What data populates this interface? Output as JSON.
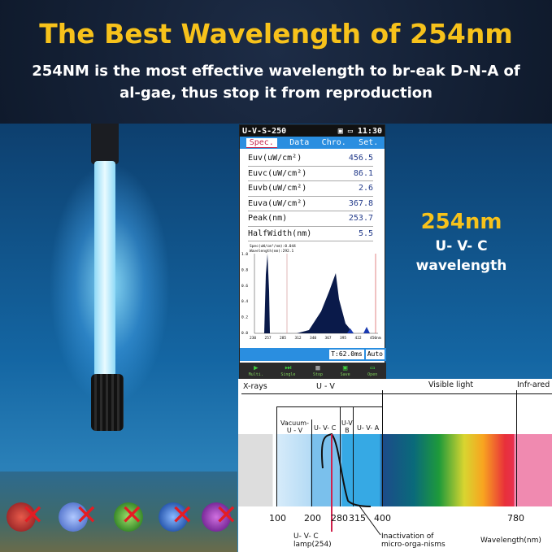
{
  "header": {
    "title": "The Best Wavelength of 254nm",
    "subtitle_line1": "254NM is the most effective wavelength to br-eak D-N-A of",
    "subtitle_line2": "al-gae, thus stop it from reproduction"
  },
  "side_text": {
    "wavelength": "254nm",
    "type": "U- V- C",
    "label": "wavelength"
  },
  "device": {
    "model": "U-V-S-250",
    "time": "11:30",
    "tabs": [
      "Spec.",
      "Data",
      "Chro.",
      "Set."
    ],
    "active_tab": "Spec.",
    "rows": [
      {
        "label": "Euv(uW/cm²)",
        "value": "456.5"
      },
      {
        "label": "Euvc(uW/cm²)",
        "value": "86.1"
      },
      {
        "label": "Euvb(uW/cm²)",
        "value": "2.6"
      },
      {
        "label": "Euva(uW/cm²)",
        "value": "367.8"
      },
      {
        "label": "Peak(nm)",
        "value": "253.7"
      },
      {
        "label": "HalfWidth(nm)",
        "value": "5.5"
      }
    ],
    "graph_info1": "Spec(uW/cm²/nm):0.044",
    "graph_info2": "Wavelength(nm):292.1",
    "y_ticks": [
      "1.0",
      "0.8",
      "0.6",
      "0.4",
      "0.2",
      "0.0"
    ],
    "x_ticks": [
      "230",
      "257",
      "285",
      "312",
      "340",
      "367",
      "395",
      "422",
      "450nm"
    ],
    "integration_time": "T:62.0ms",
    "mode": "Auto",
    "buttons": [
      {
        "label": "Multi.",
        "icon": "play-icon"
      },
      {
        "label": "Single",
        "icon": "step-icon"
      },
      {
        "label": "Stop",
        "icon": "stop-icon"
      },
      {
        "label": "Save",
        "icon": "save-icon"
      },
      {
        "label": "Open",
        "icon": "folder-icon"
      }
    ]
  },
  "spectrum": {
    "top_labels": [
      "X-rays",
      "U - V",
      "Visible light",
      "Infr-ared"
    ],
    "bands": [
      "Vacuum-\nU - V",
      "U- V- C",
      "U-V\nB",
      "U- V- A"
    ],
    "ticks": [
      "100",
      "200",
      "280",
      "315",
      "400",
      "780"
    ],
    "lamp_label": "U- V- C\nlamp(254)",
    "curve_label": "Inactivation of\nmicro-orga-nisms",
    "axis_label": "Wavelength(nm)"
  }
}
